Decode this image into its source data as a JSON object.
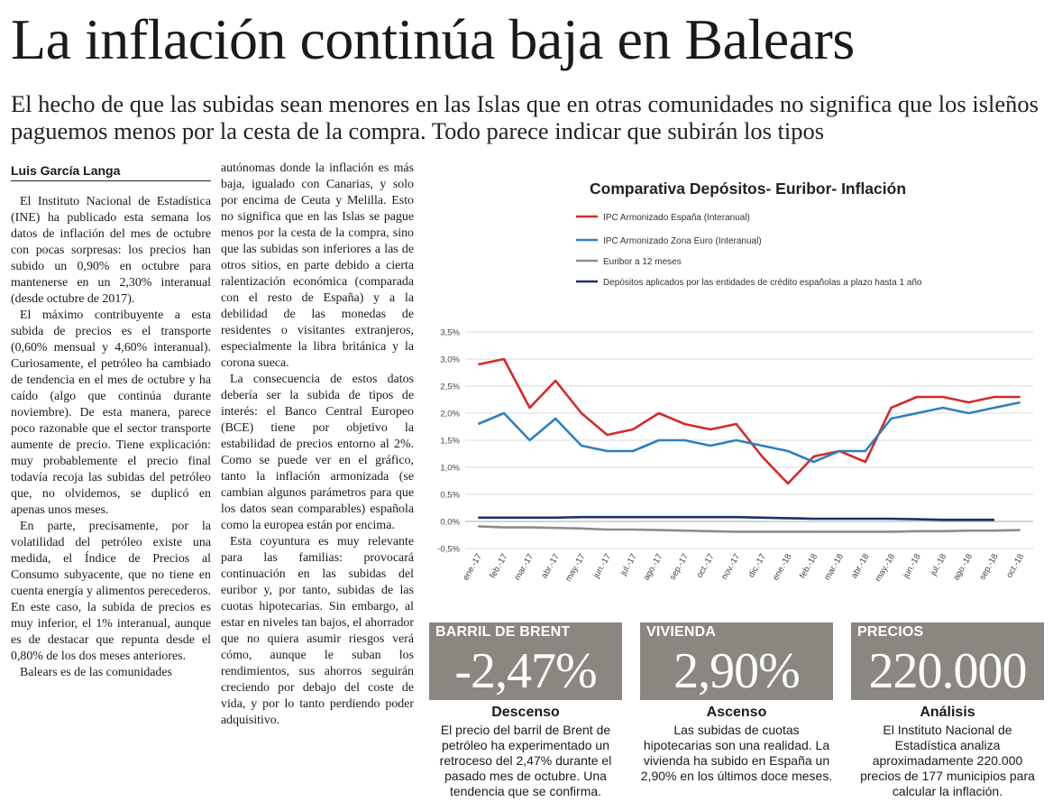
{
  "headline": "La inflación continúa baja en Balears",
  "subhead": "El hecho de que las subidas sean menores en las Islas que en otras comunidades no significa que los isleños paguemos menos por la cesta de la compra. Todo parece indicar que subirán los tipos",
  "byline": "Luis García Langa",
  "col1": [
    "El Instituto Nacional de Estadística (INE) ha publicado esta semana los datos de inflación del mes de octubre con pocas sorpresas: los precios han subido un 0,90% en octubre para mantenerse en un 2,30% interanual (desde octubre de 2017).",
    "El máximo contribuyente a esta subida de precios es el transporte (0,60% mensual y 4,60% interanual). Curiosamente, el petróleo ha cambiado de tendencia en el mes de octubre y ha caído (algo que continúa durante noviembre). De esta manera, parece poco razonable que el sector transporte aumente de precio. Tiene explicación: muy probablemente el precio final todavía recoja las subidas del petróleo que, no olvidemos, se duplicó en apenas unos meses.",
    "En parte, precisamente, por la volatilidad del petróleo existe una medida, el Índice de Precios al Consumo subyacente, que no tiene en cuenta energía y alimentos perecederos. En este caso, la subida de precios es muy inferior, el 1% interanual, aunque es de destacar que repunta desde el 0,80% de los dos meses anteriores.",
    "Balears es de las comunidades"
  ],
  "col2": [
    "autónomas donde la inflación es más baja, igualado con Canarias, y solo por encima de Ceuta y Melilla. Esto no significa que en las Islas se pague menos por la cesta de la compra, sino que las subidas son inferiores a las de otros sitios, en parte debido a cierta ralentización económica (comparada con el resto de España) y a la debilidad de las monedas de residentes o visitantes extranjeros, especialmente la libra británica y la corona sueca.",
    "La consecuencia de estos datos debería ser la subida de tipos de interés: el Banco Central Europeo (BCE) tiene por objetivo la estabilidad de precios entorno al 2%. Como se puede ver en el gráfico, tanto la inflación armonizada (se cambian algunos parámetros para que los datos sean comparables) española como la europea están por encima.",
    "Esta coyuntura es muy relevante para las familias: provocará continuación en las subidas del euribor y, por tanto, subidas de las cuotas hipotecarias. Sin embargo, al estar en niveles tan bajos, el ahorrador que no quiera asumir riesgos verá cómo, aunque le suban los rendimientos, sus ahorros seguirán creciendo por debajo del coste de vida, y por lo tanto perdiendo poder adquisitivo."
  ],
  "chart_data": {
    "type": "line",
    "title": "Comparativa Depósitos- Euribor- Inflación",
    "xlabel": "",
    "ylabel": "",
    "ylim": [
      -0.5,
      3.5
    ],
    "y_ticks": [
      "3,5%",
      "3,0%",
      "2,5%",
      "2,0%",
      "1,5%",
      "1,0%",
      "0,5%",
      "0,0%",
      "-0,5%"
    ],
    "y_tick_values": [
      3.5,
      3.0,
      2.5,
      2.0,
      1.5,
      1.0,
      0.5,
      0.0,
      -0.5
    ],
    "grid": true,
    "legend_position": "top",
    "categories": [
      "ene.-17",
      "feb.-17",
      "mar.-17",
      "abr.-17",
      "may.-17",
      "jun.-17",
      "jul.-17",
      "ago.-17",
      "sep.-17",
      "oct.-17",
      "nov.-17",
      "dic.-17",
      "ene.-18",
      "feb.-18",
      "mar.-18",
      "abr.-18",
      "may.-18",
      "jun.-18",
      "jul.-18",
      "ago.-18",
      "sep.-18",
      "oct.-18"
    ],
    "series": [
      {
        "name": "IPC Armonizado España (Interanual)",
        "color": "#d42a2a",
        "values": [
          2.9,
          3.0,
          2.1,
          2.6,
          2.0,
          1.6,
          1.7,
          2.0,
          1.8,
          1.7,
          1.8,
          1.2,
          0.7,
          1.2,
          1.3,
          1.1,
          2.1,
          2.3,
          2.3,
          2.2,
          2.3,
          2.3
        ]
      },
      {
        "name": "IPC Armonizado Zona Euro (Interanual)",
        "color": "#2f7fc1",
        "values": [
          1.8,
          2.0,
          1.5,
          1.9,
          1.4,
          1.3,
          1.3,
          1.5,
          1.5,
          1.4,
          1.5,
          1.4,
          1.3,
          1.1,
          1.3,
          1.3,
          1.9,
          2.0,
          2.1,
          2.0,
          2.1,
          2.2
        ]
      },
      {
        "name": "Euribor a 12 meses",
        "color": "#8c8c8c",
        "values": [
          -0.09,
          -0.11,
          -0.11,
          -0.12,
          -0.13,
          -0.15,
          -0.15,
          -0.16,
          -0.17,
          -0.18,
          -0.19,
          -0.19,
          -0.19,
          -0.19,
          -0.19,
          -0.19,
          -0.19,
          -0.18,
          -0.18,
          -0.17,
          -0.17,
          -0.16
        ]
      },
      {
        "name": "Depósitos aplicados por las entidades de crédito españolas a plazo hasta 1 año",
        "color": "#1f2f6e",
        "values": [
          0.07,
          0.07,
          0.07,
          0.07,
          0.08,
          0.08,
          0.08,
          0.08,
          0.08,
          0.08,
          0.08,
          0.07,
          0.06,
          0.05,
          0.05,
          0.05,
          0.05,
          0.04,
          0.03,
          0.03,
          0.03,
          null
        ]
      }
    ]
  },
  "facts": [
    {
      "label": "BARRIL DE BRENT",
      "value": "-2,47%",
      "title": "Descenso",
      "text": "El precio del barril de Brent de petróleo ha experimentado un retroceso del 2,47% durante el pasado mes de octubre. Una tendencia que se confirma."
    },
    {
      "label": "VIVIENDA",
      "value": "2,90%",
      "title": "Ascenso",
      "text": "Las subidas de cuotas hipotecarias son una realidad. La vivienda ha subido en España un 2,90% en los últimos doce meses."
    },
    {
      "label": "PRECIOS",
      "value": "220.000",
      "title": "Análisis",
      "text": "El Instituto Nacional de Estadística analiza aproximadamente 220.000 precios de 177 municipios para calcular la inflación."
    }
  ]
}
